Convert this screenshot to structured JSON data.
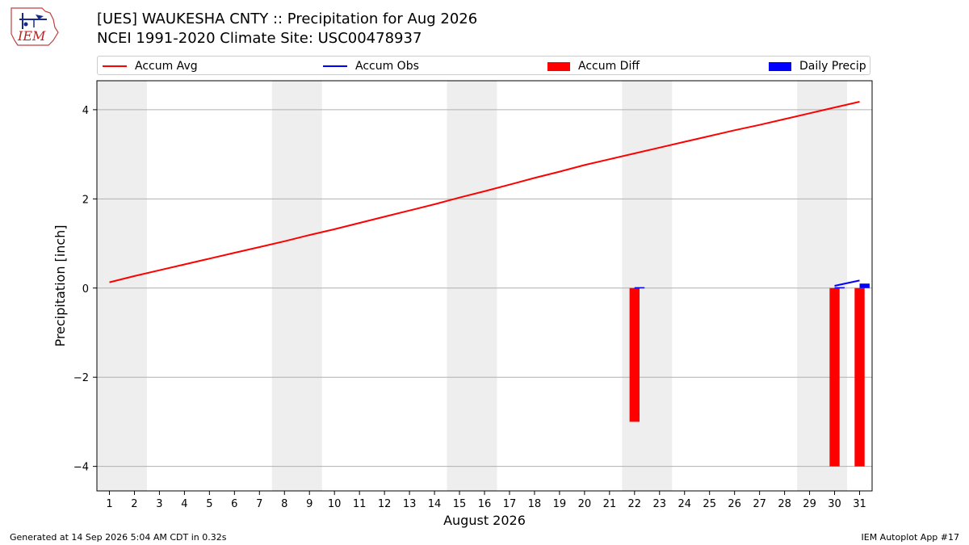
{
  "header": {
    "logo_text": "IEM",
    "title_line1": "[UES] WAUKESHA CNTY :: Precipitation for Aug 2026",
    "title_line2": "NCEI 1991-2020 Climate Site: USC00478937"
  },
  "legend": [
    {
      "label": "Accum Avg",
      "color": "#ff0000",
      "kind": "line"
    },
    {
      "label": "Accum Obs",
      "color": "#0000ff",
      "kind": "line"
    },
    {
      "label": "Accum Diff",
      "color": "#ff0000",
      "kind": "box"
    },
    {
      "label": "Daily Precip",
      "color": "#0000ff",
      "kind": "box"
    }
  ],
  "footer": {
    "left": "Generated at 14 Sep 2026 5:04 AM CDT in 0.32s",
    "right": "IEM Autoplot App #17"
  },
  "chart_data": {
    "type": "bar",
    "xlabel": "August 2026",
    "ylabel": "Precipitation [inch]",
    "xlim": [
      0.5,
      31.5
    ],
    "ylim": [
      -4.55,
      4.65
    ],
    "x_ticks": [
      1,
      2,
      3,
      4,
      5,
      6,
      7,
      8,
      9,
      10,
      11,
      12,
      13,
      14,
      15,
      16,
      17,
      18,
      19,
      20,
      21,
      22,
      23,
      24,
      25,
      26,
      27,
      28,
      29,
      30,
      31
    ],
    "y_ticks": [
      -4,
      -2,
      0,
      2,
      4
    ],
    "y_tick_labels": [
      "−4",
      "−2",
      "0",
      "2",
      "4"
    ],
    "grid": "horizontal",
    "weekend_shading": [
      [
        1,
        2
      ],
      [
        8,
        9
      ],
      [
        15,
        16
      ],
      [
        22,
        23
      ],
      [
        29,
        30
      ]
    ],
    "series": [
      {
        "name": "Accum Avg",
        "type": "line",
        "color": "#ff0000",
        "x": [
          1,
          2,
          3,
          4,
          5,
          6,
          7,
          8,
          9,
          10,
          11,
          12,
          13,
          14,
          15,
          16,
          17,
          18,
          19,
          20,
          21,
          22,
          23,
          24,
          25,
          26,
          27,
          28,
          29,
          30,
          31
        ],
        "values": [
          0.13,
          0.27,
          0.4,
          0.53,
          0.66,
          0.79,
          0.92,
          1.05,
          1.19,
          1.32,
          1.46,
          1.6,
          1.74,
          1.88,
          2.03,
          2.17,
          2.32,
          2.47,
          2.61,
          2.76,
          2.89,
          3.02,
          3.15,
          3.28,
          3.41,
          3.54,
          3.66,
          3.79,
          3.92,
          4.05,
          4.18
        ]
      },
      {
        "name": "Accum Obs",
        "type": "line",
        "color": "#0000ff",
        "x": [
          30,
          31
        ],
        "values": [
          0.05,
          0.17
        ]
      },
      {
        "name": "Accum Diff",
        "type": "bar",
        "color": "#ff0000",
        "x": [
          22,
          30,
          31
        ],
        "values": [
          -3.0,
          -4.0,
          -4.0
        ]
      },
      {
        "name": "Daily Precip",
        "type": "bar",
        "color": "#0000ff",
        "x": [
          22,
          30,
          31
        ],
        "values": [
          0.02,
          0.02,
          0.1
        ]
      }
    ]
  }
}
